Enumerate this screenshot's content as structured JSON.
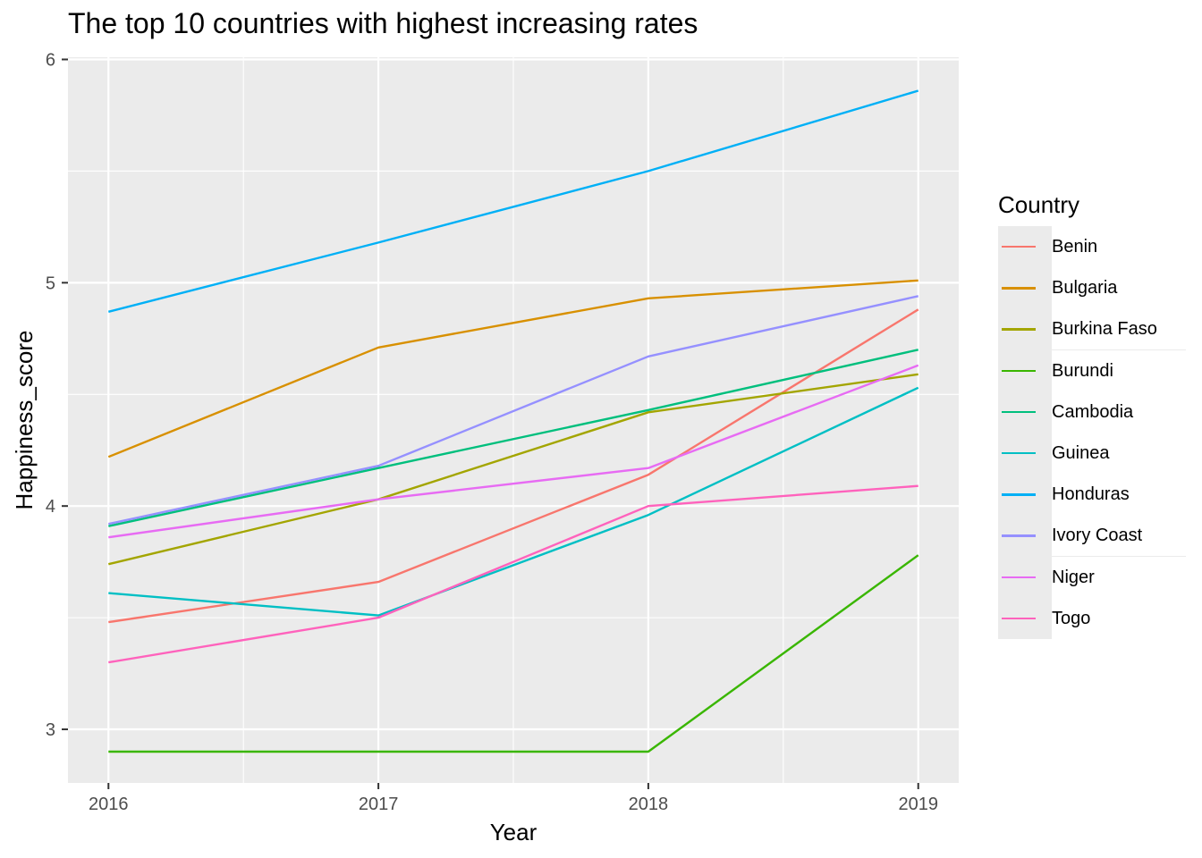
{
  "chart_data": {
    "type": "line",
    "title": "The top 10 countries with highest increasing rates",
    "xlabel": "Year",
    "ylabel": "Happiness_score",
    "x": [
      2016,
      2017,
      2018,
      2019
    ],
    "x_tick_labels": [
      "2016",
      "2017",
      "2018",
      "2019"
    ],
    "y_ticks": [
      3,
      4,
      5,
      6
    ],
    "y_tick_labels": [
      "3",
      "4",
      "5",
      "6"
    ],
    "xlim": [
      2015.85,
      2019.15
    ],
    "ylim": [
      2.76,
      6.01
    ],
    "grid": true,
    "legend_title": "Country",
    "legend_position": "right",
    "series": [
      {
        "name": "Benin",
        "color": "#F8766D",
        "values": [
          3.48,
          3.66,
          4.14,
          4.88
        ]
      },
      {
        "name": "Bulgaria",
        "color": "#D89000",
        "values": [
          4.22,
          4.71,
          4.93,
          5.01
        ]
      },
      {
        "name": "Burkina Faso",
        "color": "#A3A500",
        "values": [
          3.74,
          4.03,
          4.42,
          4.59
        ]
      },
      {
        "name": "Burundi",
        "color": "#39B600",
        "values": [
          2.9,
          2.9,
          2.9,
          3.78
        ]
      },
      {
        "name": "Cambodia",
        "color": "#00BF7D",
        "values": [
          3.91,
          4.17,
          4.43,
          4.7
        ]
      },
      {
        "name": "Guinea",
        "color": "#00BFC4",
        "values": [
          3.61,
          3.51,
          3.96,
          4.53
        ]
      },
      {
        "name": "Honduras",
        "color": "#00B0F6",
        "values": [
          4.87,
          5.18,
          5.5,
          5.86
        ]
      },
      {
        "name": "Ivory Coast",
        "color": "#9590FF",
        "values": [
          3.92,
          4.18,
          4.67,
          4.94
        ]
      },
      {
        "name": "Niger",
        "color": "#E76BF3",
        "values": [
          3.86,
          4.03,
          4.17,
          4.63
        ]
      },
      {
        "name": "Togo",
        "color": "#FF62BC",
        "values": [
          3.3,
          3.5,
          4.0,
          4.09
        ]
      }
    ]
  }
}
